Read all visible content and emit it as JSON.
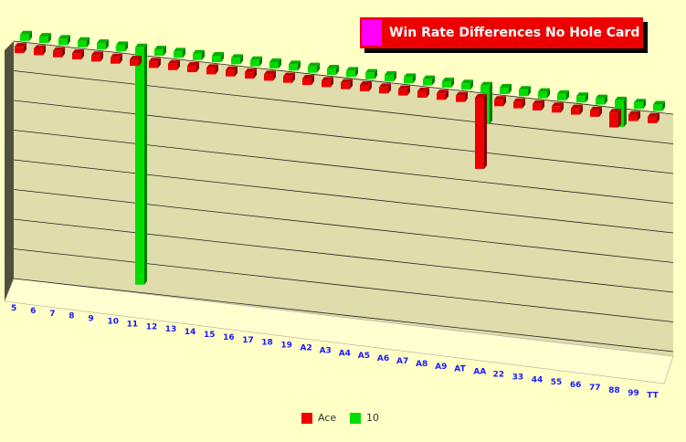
{
  "chart_data": {
    "type": "bar3d",
    "title": "Win Rate Differences No Hole Card",
    "categories": [
      "5",
      "6",
      "7",
      "8",
      "9",
      "10",
      "11",
      "12",
      "13",
      "14",
      "15",
      "16",
      "17",
      "18",
      "19",
      "A2",
      "A3",
      "A4",
      "A5",
      "A6",
      "A7",
      "A8",
      "A9",
      "AT",
      "AA",
      "22",
      "33",
      "44",
      "55",
      "66",
      "77",
      "88",
      "99",
      "TT"
    ],
    "series": [
      {
        "name": "Ace",
        "color": "#ee0000",
        "values": [
          0,
          0,
          0,
          0,
          0,
          0,
          0,
          0,
          0,
          0,
          0,
          0,
          0,
          0,
          0,
          0,
          0,
          0,
          0,
          0,
          0,
          0,
          0,
          0,
          -2.4,
          0,
          0,
          0,
          0,
          0,
          0,
          -0.5,
          0,
          0
        ]
      },
      {
        "name": "10",
        "color": "#00dd00",
        "values": [
          0,
          0,
          0,
          0,
          0,
          0,
          -8,
          0,
          0,
          0,
          0,
          0,
          0,
          0,
          0,
          0,
          0,
          0,
          0,
          0,
          0,
          0,
          0,
          0,
          -1.3,
          0,
          0,
          0,
          0,
          0,
          0,
          -0.9,
          0,
          0
        ]
      }
    ],
    "ylim": [
      -8,
      0
    ],
    "yticks": [
      -8,
      -7,
      -6,
      -5,
      -4,
      -3,
      -2,
      -1,
      0
    ],
    "grid": true
  }
}
